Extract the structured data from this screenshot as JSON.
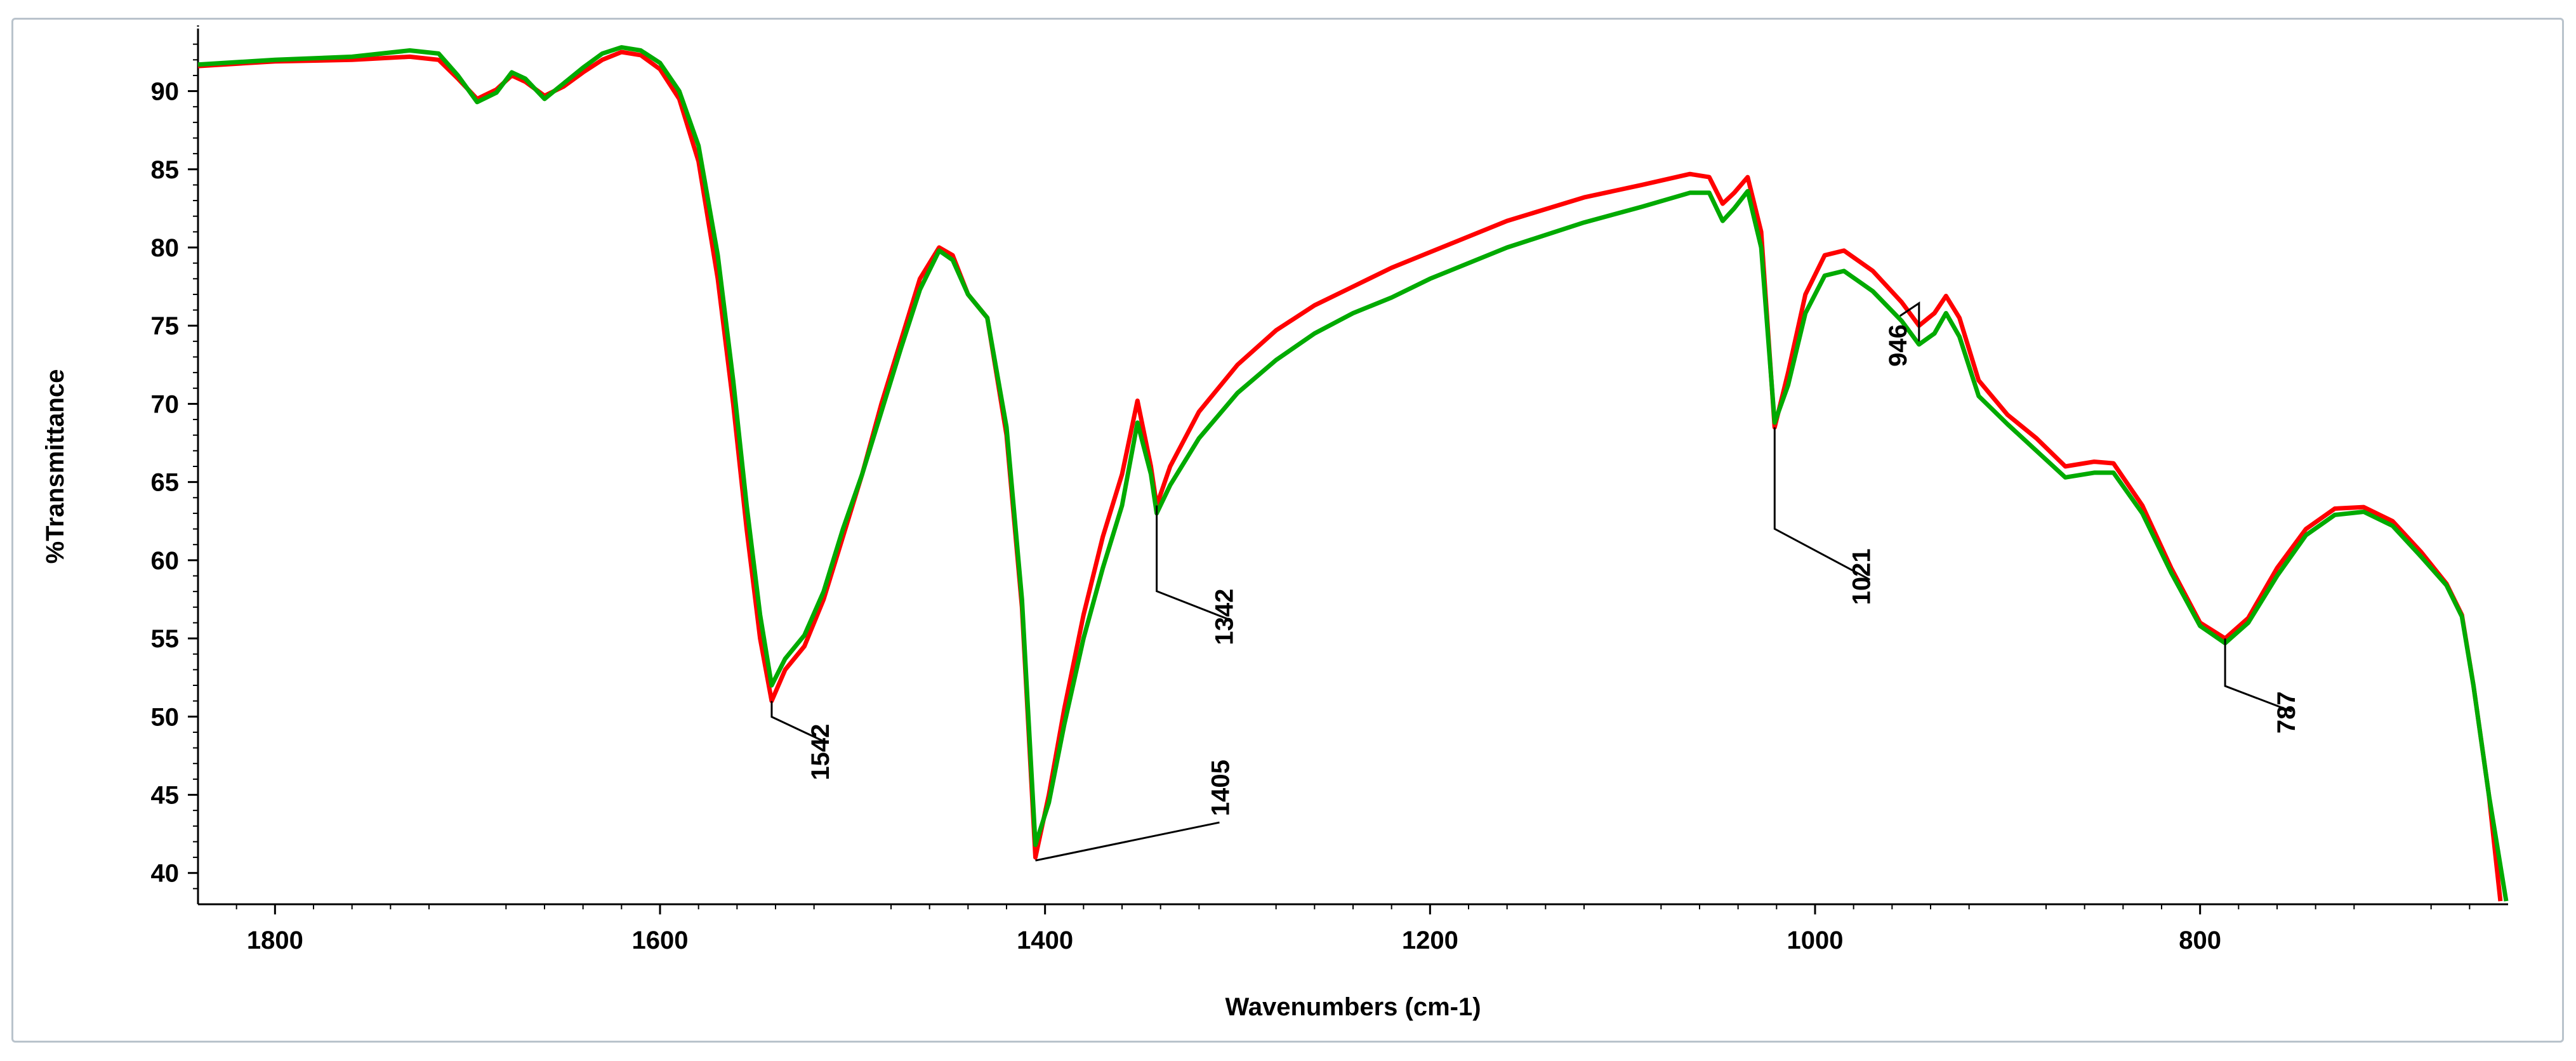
{
  "chart_data": {
    "type": "line",
    "xlabel": "Wavenumbers (cm-1)",
    "ylabel": "%Transmittance",
    "xlim": [
      1840,
      640
    ],
    "ylim": [
      38,
      94
    ],
    "x_ticks": [
      1800,
      1600,
      1400,
      1200,
      1000,
      800
    ],
    "y_ticks": [
      40,
      45,
      50,
      55,
      60,
      65,
      70,
      75,
      80,
      85,
      90
    ],
    "grid": false,
    "x_reversed": true,
    "series": [
      {
        "color": "#ff0000",
        "points": [
          [
            1840,
            91.6
          ],
          [
            1800,
            91.9
          ],
          [
            1760,
            92.0
          ],
          [
            1730,
            92.2
          ],
          [
            1715,
            92.0
          ],
          [
            1705,
            90.8
          ],
          [
            1695,
            89.5
          ],
          [
            1685,
            90.1
          ],
          [
            1677,
            91.0
          ],
          [
            1670,
            90.6
          ],
          [
            1660,
            89.7
          ],
          [
            1650,
            90.3
          ],
          [
            1640,
            91.2
          ],
          [
            1630,
            92.0
          ],
          [
            1620,
            92.5
          ],
          [
            1610,
            92.3
          ],
          [
            1600,
            91.4
          ],
          [
            1590,
            89.5
          ],
          [
            1580,
            85.5
          ],
          [
            1570,
            78.0
          ],
          [
            1562,
            70.0
          ],
          [
            1555,
            62.0
          ],
          [
            1548,
            55.0
          ],
          [
            1542,
            51.0
          ],
          [
            1535,
            53.0
          ],
          [
            1525,
            54.5
          ],
          [
            1515,
            57.5
          ],
          [
            1505,
            61.5
          ],
          [
            1495,
            65.5
          ],
          [
            1485,
            70.0
          ],
          [
            1475,
            74.0
          ],
          [
            1465,
            78.0
          ],
          [
            1455,
            80.0
          ],
          [
            1448,
            79.5
          ],
          [
            1440,
            77.0
          ],
          [
            1430,
            75.5
          ],
          [
            1420,
            68.0
          ],
          [
            1412,
            57.0
          ],
          [
            1405,
            41.0
          ],
          [
            1398,
            45.0
          ],
          [
            1390,
            50.5
          ],
          [
            1380,
            56.5
          ],
          [
            1370,
            61.5
          ],
          [
            1360,
            65.5
          ],
          [
            1352,
            70.2
          ],
          [
            1345,
            66.0
          ],
          [
            1342,
            63.5
          ],
          [
            1335,
            66.0
          ],
          [
            1320,
            69.5
          ],
          [
            1300,
            72.5
          ],
          [
            1280,
            74.7
          ],
          [
            1260,
            76.3
          ],
          [
            1240,
            77.5
          ],
          [
            1220,
            78.7
          ],
          [
            1200,
            79.7
          ],
          [
            1160,
            81.7
          ],
          [
            1120,
            83.2
          ],
          [
            1090,
            84.0
          ],
          [
            1065,
            84.7
          ],
          [
            1055,
            84.5
          ],
          [
            1048,
            82.8
          ],
          [
            1042,
            83.5
          ],
          [
            1035,
            84.5
          ],
          [
            1028,
            81.0
          ],
          [
            1021,
            68.5
          ],
          [
            1014,
            72.0
          ],
          [
            1005,
            77.0
          ],
          [
            995,
            79.5
          ],
          [
            985,
            79.8
          ],
          [
            970,
            78.5
          ],
          [
            955,
            76.5
          ],
          [
            946,
            75.0
          ],
          [
            938,
            75.8
          ],
          [
            932,
            76.9
          ],
          [
            925,
            75.5
          ],
          [
            915,
            71.5
          ],
          [
            900,
            69.3
          ],
          [
            885,
            67.8
          ],
          [
            870,
            66.0
          ],
          [
            855,
            66.3
          ],
          [
            845,
            66.2
          ],
          [
            830,
            63.5
          ],
          [
            815,
            59.5
          ],
          [
            800,
            56.0
          ],
          [
            787,
            55.0
          ],
          [
            775,
            56.3
          ],
          [
            760,
            59.5
          ],
          [
            745,
            62.0
          ],
          [
            730,
            63.3
          ],
          [
            715,
            63.4
          ],
          [
            700,
            62.5
          ],
          [
            685,
            60.5
          ],
          [
            672,
            58.5
          ],
          [
            664,
            56.5
          ],
          [
            658,
            52.0
          ],
          [
            650,
            45.0
          ],
          [
            644,
            38.2
          ]
        ]
      },
      {
        "color": "#00aa00",
        "points": [
          [
            1840,
            91.7
          ],
          [
            1800,
            92.0
          ],
          [
            1760,
            92.2
          ],
          [
            1730,
            92.6
          ],
          [
            1715,
            92.4
          ],
          [
            1705,
            91.0
          ],
          [
            1695,
            89.3
          ],
          [
            1685,
            89.9
          ],
          [
            1677,
            91.2
          ],
          [
            1670,
            90.8
          ],
          [
            1660,
            89.5
          ],
          [
            1650,
            90.5
          ],
          [
            1640,
            91.5
          ],
          [
            1630,
            92.4
          ],
          [
            1620,
            92.8
          ],
          [
            1610,
            92.6
          ],
          [
            1600,
            91.8
          ],
          [
            1590,
            90.0
          ],
          [
            1580,
            86.5
          ],
          [
            1570,
            79.5
          ],
          [
            1562,
            71.5
          ],
          [
            1555,
            63.5
          ],
          [
            1548,
            56.5
          ],
          [
            1542,
            52.0
          ],
          [
            1535,
            53.7
          ],
          [
            1525,
            55.2
          ],
          [
            1515,
            58.0
          ],
          [
            1505,
            62.0
          ],
          [
            1495,
            65.5
          ],
          [
            1485,
            69.5
          ],
          [
            1475,
            73.5
          ],
          [
            1465,
            77.3
          ],
          [
            1455,
            79.8
          ],
          [
            1448,
            79.2
          ],
          [
            1440,
            77.0
          ],
          [
            1430,
            75.5
          ],
          [
            1420,
            68.5
          ],
          [
            1412,
            57.5
          ],
          [
            1405,
            41.8
          ],
          [
            1398,
            44.5
          ],
          [
            1390,
            49.5
          ],
          [
            1380,
            55.0
          ],
          [
            1370,
            59.5
          ],
          [
            1360,
            63.5
          ],
          [
            1352,
            68.8
          ],
          [
            1345,
            65.5
          ],
          [
            1342,
            63.0
          ],
          [
            1335,
            64.8
          ],
          [
            1320,
            67.8
          ],
          [
            1300,
            70.7
          ],
          [
            1280,
            72.8
          ],
          [
            1260,
            74.5
          ],
          [
            1240,
            75.8
          ],
          [
            1220,
            76.8
          ],
          [
            1200,
            78.0
          ],
          [
            1160,
            80.0
          ],
          [
            1120,
            81.6
          ],
          [
            1090,
            82.6
          ],
          [
            1065,
            83.5
          ],
          [
            1055,
            83.5
          ],
          [
            1048,
            81.7
          ],
          [
            1042,
            82.5
          ],
          [
            1035,
            83.6
          ],
          [
            1028,
            80.0
          ],
          [
            1021,
            68.8
          ],
          [
            1014,
            71.2
          ],
          [
            1005,
            75.8
          ],
          [
            995,
            78.2
          ],
          [
            985,
            78.5
          ],
          [
            970,
            77.2
          ],
          [
            955,
            75.3
          ],
          [
            946,
            73.8
          ],
          [
            938,
            74.5
          ],
          [
            932,
            75.8
          ],
          [
            925,
            74.3
          ],
          [
            915,
            70.5
          ],
          [
            900,
            68.7
          ],
          [
            885,
            67.0
          ],
          [
            870,
            65.3
          ],
          [
            855,
            65.6
          ],
          [
            845,
            65.6
          ],
          [
            830,
            63.0
          ],
          [
            815,
            59.2
          ],
          [
            800,
            55.8
          ],
          [
            787,
            54.7
          ],
          [
            775,
            56.0
          ],
          [
            760,
            59.0
          ],
          [
            745,
            61.6
          ],
          [
            730,
            62.9
          ],
          [
            715,
            63.1
          ],
          [
            700,
            62.2
          ],
          [
            685,
            60.2
          ],
          [
            672,
            58.4
          ],
          [
            664,
            56.4
          ],
          [
            658,
            52.0
          ],
          [
            650,
            45.0
          ],
          [
            641,
            38.2
          ]
        ]
      }
    ],
    "annotations": [
      {
        "label": "1542",
        "x": 1542,
        "y": 51.0
      },
      {
        "label": "1405",
        "x": 1405,
        "y": 41.0
      },
      {
        "label": "1342",
        "x": 1342,
        "y": 63.5
      },
      {
        "label": "1021",
        "x": 1021,
        "y": 68.5
      },
      {
        "label": "946",
        "x": 946,
        "y": 74.0
      },
      {
        "label": "787",
        "x": 787,
        "y": 55.0
      }
    ]
  }
}
